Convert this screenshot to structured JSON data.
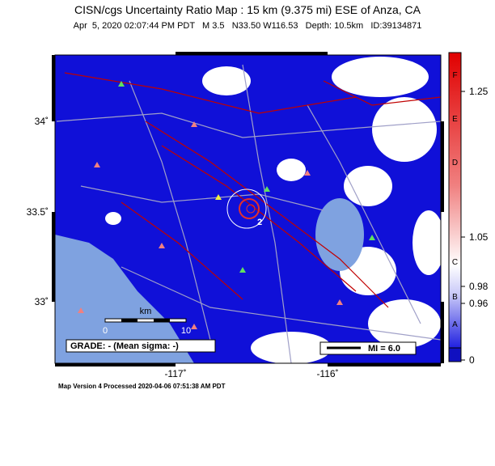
{
  "header": {
    "title": "CISN/cgs Uncertainty Ratio Map : 15 km (9.375 mi) ESE of Anza, CA",
    "subtitle": "Apr  5, 2020 02:07:44 PM PDT   M 3.5   N33.50 W116.53   Depth: 10.5km   ID:39134871"
  },
  "map": {
    "lat_labels": [
      "34˚",
      "33.5˚",
      "33˚"
    ],
    "lon_labels": [
      "-117˚",
      "-116˚"
    ],
    "scale": {
      "unit": "km",
      "start": "0",
      "end": "10"
    },
    "grade": "GRADE: - (Mean sigma: -)",
    "mi_legend": "MI = 6.0",
    "epicenter_label": "2"
  },
  "colorbar": {
    "grades": [
      "F",
      "E",
      "D",
      "C",
      "B",
      "A"
    ],
    "ticks": [
      "1.25",
      "1.05",
      "0.98",
      "0.96",
      "0"
    ]
  },
  "footer": "Map Version 4 Processed 2020-04-06 07:51:38 AM PDT"
}
